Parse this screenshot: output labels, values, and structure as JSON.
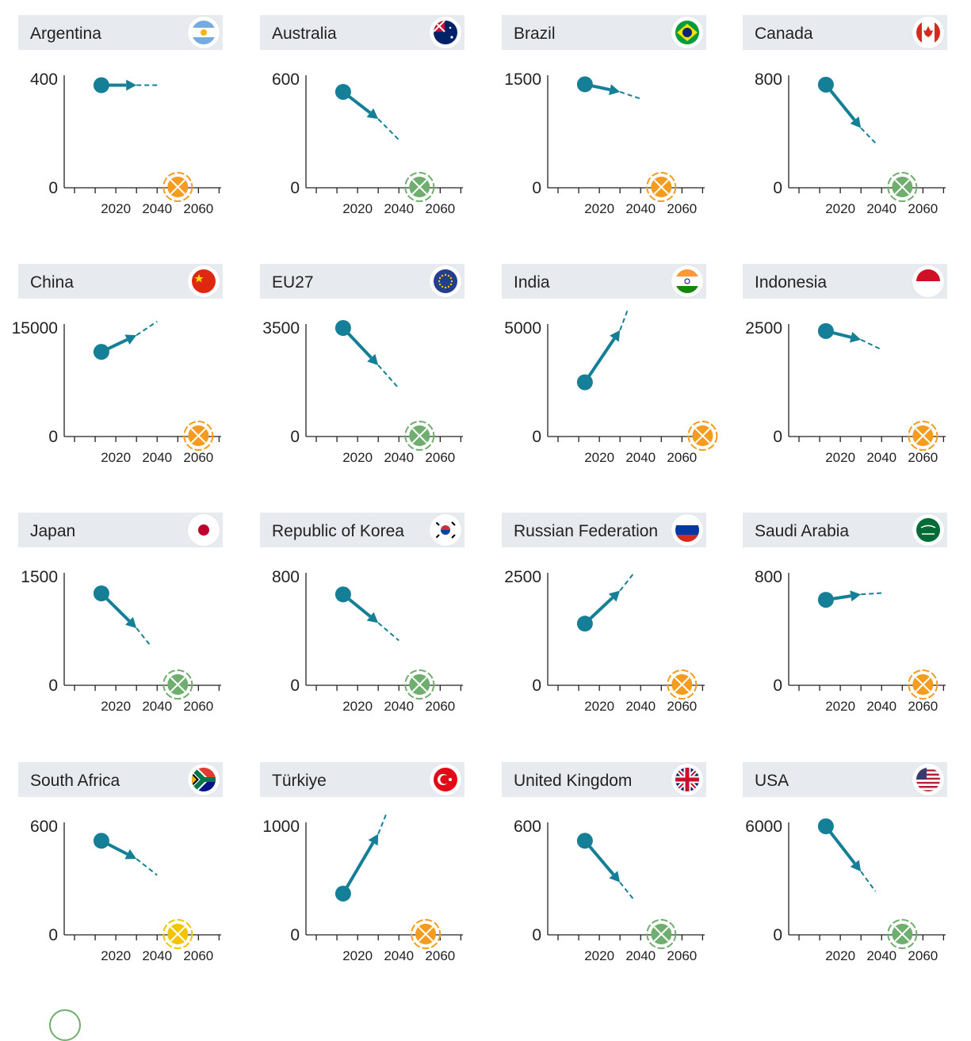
{
  "colors": {
    "series": "#147f96",
    "achieved_green": "#6fae6f",
    "target_orange": "#f39c1f",
    "target_yellow": "#f2c500",
    "header_bg": "#e7eaee",
    "axis": "#222222"
  },
  "chart_data": [
    {
      "type": "line",
      "title": "Argentina",
      "flag": "argentina-flag",
      "ylim": [
        0,
        400
      ],
      "yticks": [
        0,
        400
      ],
      "xticks": [
        2020,
        2040,
        2060
      ],
      "x": [
        2013,
        2030,
        2040
      ],
      "y": [
        378,
        378,
        378
      ],
      "target_year": 2050,
      "target_status": "orange"
    },
    {
      "type": "line",
      "title": "Australia",
      "flag": "australia-flag",
      "ylim": [
        0,
        600
      ],
      "yticks": [
        0,
        600
      ],
      "xticks": [
        2020,
        2040,
        2060
      ],
      "x": [
        2013,
        2030,
        2040
      ],
      "y": [
        530,
        380,
        265
      ],
      "target_year": 2050,
      "target_status": "green"
    },
    {
      "type": "line",
      "title": "Brazil",
      "flag": "brazil-flag",
      "ylim": [
        0,
        1500
      ],
      "yticks": [
        0,
        1500
      ],
      "xticks": [
        2020,
        2040,
        2060
      ],
      "x": [
        2013,
        2030,
        2040
      ],
      "y": [
        1430,
        1325,
        1230
      ],
      "target_year": 2050,
      "target_status": "orange"
    },
    {
      "type": "line",
      "title": "Canada",
      "flag": "canada-flag",
      "ylim": [
        0,
        800
      ],
      "yticks": [
        0,
        800
      ],
      "xticks": [
        2020,
        2040,
        2060
      ],
      "x": [
        2013,
        2030,
        2037
      ],
      "y": [
        760,
        440,
        330
      ],
      "target_year": 2050,
      "target_status": "green"
    },
    {
      "type": "line",
      "title": "China",
      "flag": "china-flag",
      "ylim": [
        0,
        15000
      ],
      "yticks": [
        0,
        15000
      ],
      "xticks": [
        2020,
        2040,
        2060
      ],
      "x": [
        2013,
        2030,
        2040
      ],
      "y": [
        11700,
        14000,
        15900
      ],
      "target_year": 2060,
      "target_status": "orange"
    },
    {
      "type": "line",
      "title": "EU27",
      "flag": "eu-flag",
      "ylim": [
        0,
        3500
      ],
      "yticks": [
        0,
        3500
      ],
      "xticks": [
        2020,
        2040,
        2060
      ],
      "x": [
        2013,
        2030,
        2040
      ],
      "y": [
        3500,
        2300,
        1550
      ],
      "target_year": 2050,
      "target_status": "green"
    },
    {
      "type": "line",
      "title": "India",
      "flag": "india-flag",
      "ylim": [
        0,
        5000
      ],
      "yticks": [
        0,
        5000
      ],
      "xticks": [
        2020,
        2040,
        2060
      ],
      "x": [
        2013,
        2030,
        2034
      ],
      "y": [
        2500,
        4900,
        5900
      ],
      "target_year": 2070,
      "target_status": "orange"
    },
    {
      "type": "line",
      "title": "Indonesia",
      "flag": "indonesia-flag",
      "ylim": [
        0,
        2500
      ],
      "yticks": [
        0,
        2500
      ],
      "xticks": [
        2020,
        2040,
        2060
      ],
      "x": [
        2013,
        2030,
        2040
      ],
      "y": [
        2430,
        2230,
        2000
      ],
      "target_year": 2060,
      "target_status": "orange"
    },
    {
      "type": "line",
      "title": "Japan",
      "flag": "japan-flag",
      "ylim": [
        0,
        1500
      ],
      "yticks": [
        0,
        1500
      ],
      "xticks": [
        2020,
        2040,
        2060
      ],
      "x": [
        2013,
        2030,
        2037
      ],
      "y": [
        1270,
        790,
        540
      ],
      "target_year": 2050,
      "target_status": "green"
    },
    {
      "type": "line",
      "title": "Republic of Korea",
      "flag": "korea-flag",
      "ylim": [
        0,
        800
      ],
      "yticks": [
        0,
        800
      ],
      "xticks": [
        2020,
        2040,
        2060
      ],
      "x": [
        2013,
        2030,
        2040
      ],
      "y": [
        670,
        460,
        330
      ],
      "target_year": 2050,
      "target_status": "green"
    },
    {
      "type": "line",
      "title": "Russian Federation",
      "flag": "russia-flag",
      "ylim": [
        0,
        2500
      ],
      "yticks": [
        0,
        2500
      ],
      "xticks": [
        2020,
        2040,
        2060
      ],
      "x": [
        2013,
        2030,
        2037
      ],
      "y": [
        1420,
        2180,
        2600
      ],
      "target_year": 2060,
      "target_status": "orange"
    },
    {
      "type": "line",
      "title": "Saudi Arabia",
      "flag": "saudi-arabia-flag",
      "ylim": [
        0,
        800
      ],
      "yticks": [
        0,
        800
      ],
      "xticks": [
        2020,
        2040,
        2060
      ],
      "x": [
        2013,
        2030,
        2040
      ],
      "y": [
        630,
        670,
        680
      ],
      "target_year": 2060,
      "target_status": "orange"
    },
    {
      "type": "line",
      "title": "South Africa",
      "flag": "south-africa-flag",
      "ylim": [
        0,
        600
      ],
      "yticks": [
        0,
        600
      ],
      "xticks": [
        2020,
        2040,
        2060
      ],
      "x": [
        2013,
        2030,
        2040
      ],
      "y": [
        520,
        420,
        330
      ],
      "target_year": 2050,
      "target_status": "yellow"
    },
    {
      "type": "line",
      "title": "Türkiye",
      "flag": "turkiye-flag",
      "ylim": [
        0,
        1000
      ],
      "yticks": [
        0,
        1000
      ],
      "xticks": [
        2020,
        2040,
        2060
      ],
      "x": [
        2013,
        2030,
        2034
      ],
      "y": [
        380,
        930,
        1120
      ],
      "target_year": 2053,
      "target_status": "orange"
    },
    {
      "type": "line",
      "title": "United Kingdom",
      "flag": "uk-flag",
      "ylim": [
        0,
        600
      ],
      "yticks": [
        0,
        600
      ],
      "xticks": [
        2020,
        2040,
        2060
      ],
      "x": [
        2013,
        2030,
        2037
      ],
      "y": [
        520,
        290,
        190
      ],
      "target_year": 2050,
      "target_status": "green"
    },
    {
      "type": "line",
      "title": "USA",
      "flag": "usa-flag",
      "ylim": [
        0,
        6000
      ],
      "yticks": [
        0,
        6000
      ],
      "xticks": [
        2020,
        2040,
        2060
      ],
      "x": [
        2013,
        2030,
        2037
      ],
      "y": [
        6000,
        3500,
        2400
      ],
      "target_year": 2050,
      "target_status": "green"
    }
  ]
}
